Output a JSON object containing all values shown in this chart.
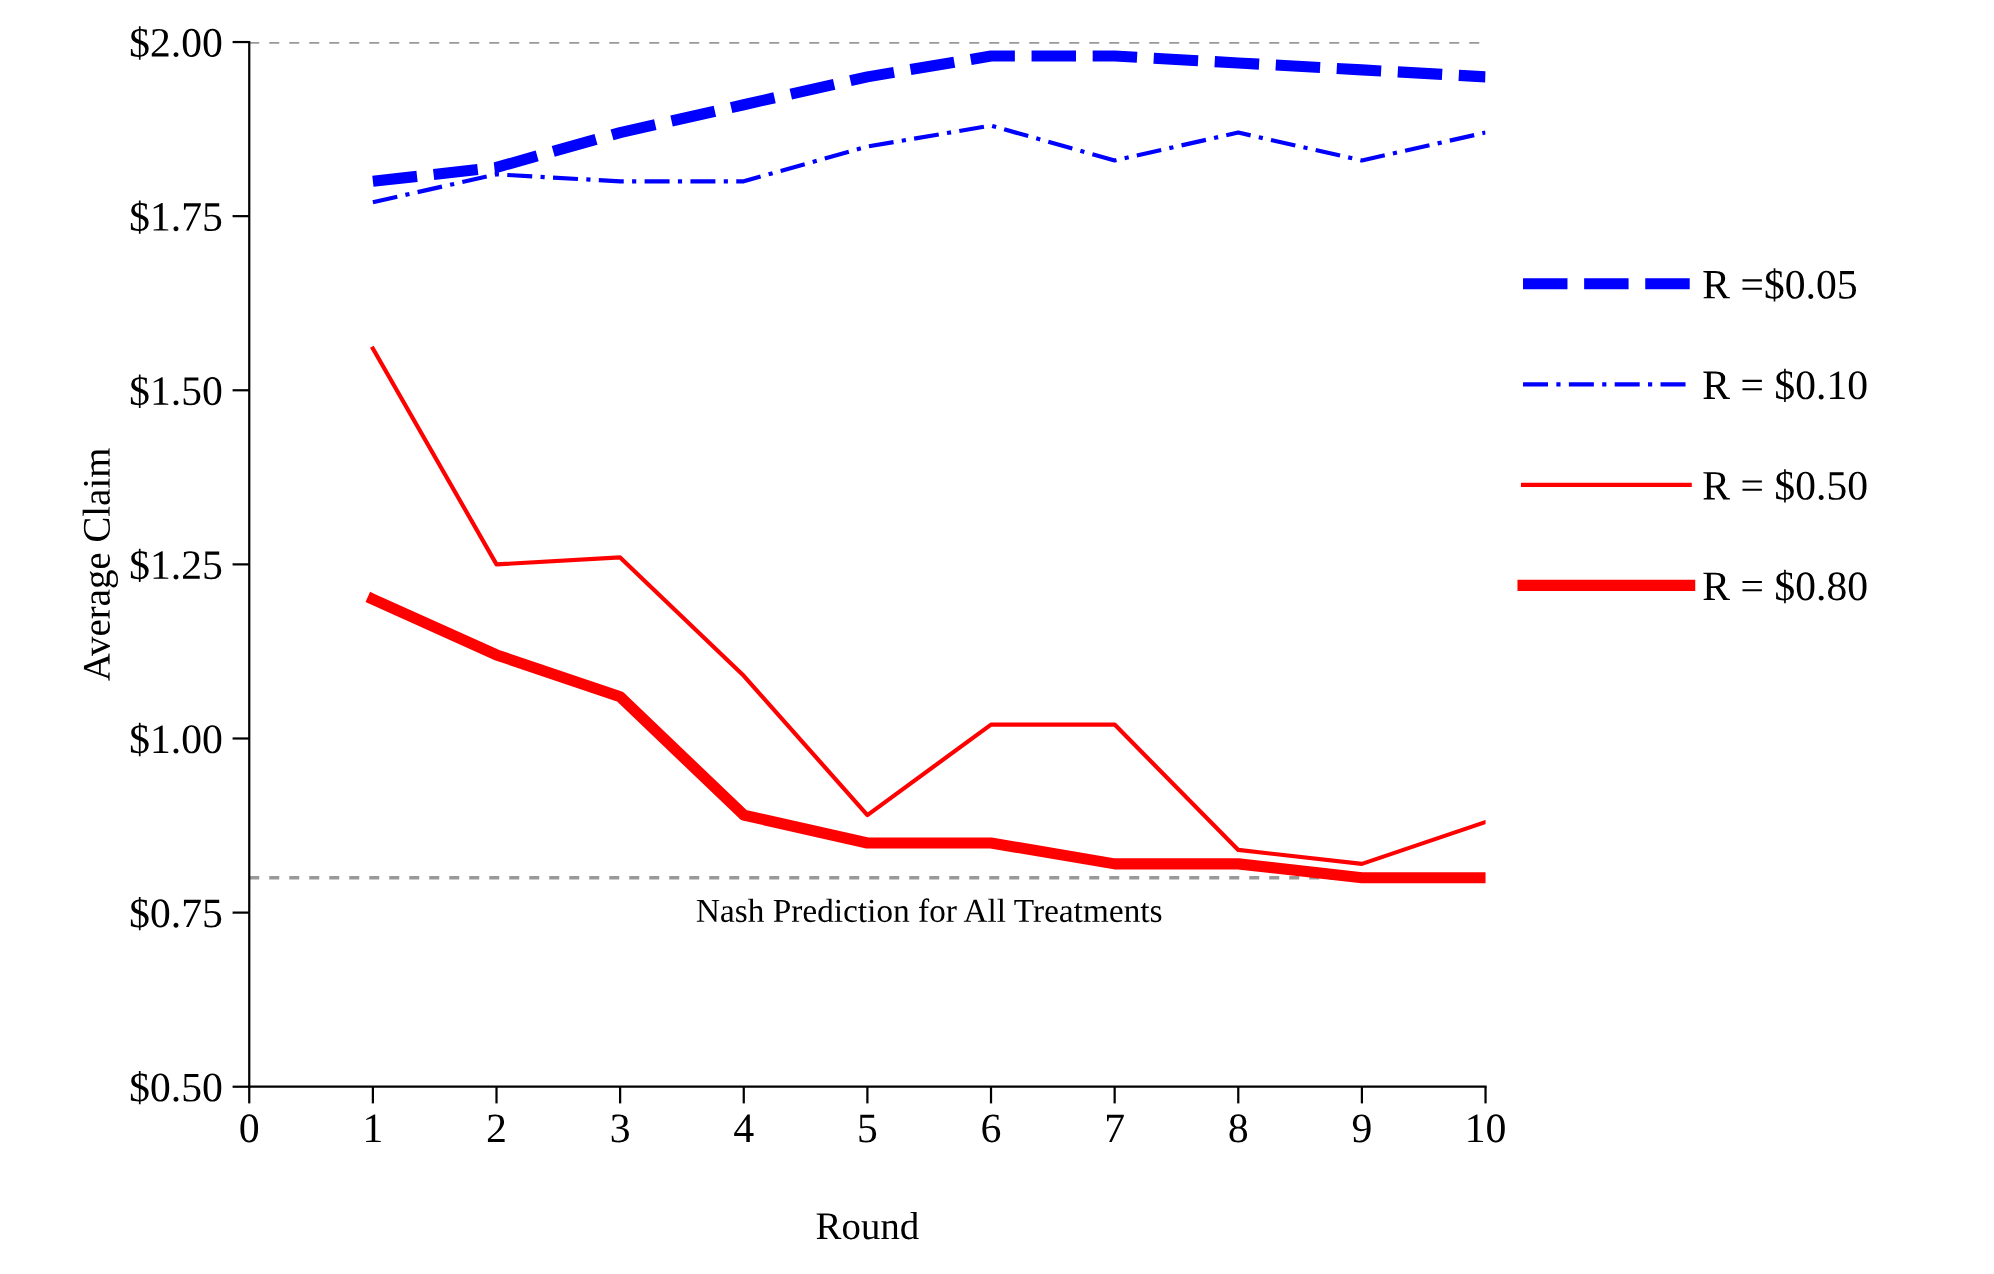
{
  "chart_data": {
    "type": "line",
    "xlabel": "Round",
    "ylabel": "Average Claim",
    "x": [
      1,
      2,
      3,
      4,
      5,
      6,
      7,
      8,
      9,
      10
    ],
    "series": [
      {
        "name": "R =$0.05",
        "color": "#0000ff",
        "line_style": "dashed",
        "values": [
          1.8,
          1.82,
          1.87,
          1.91,
          1.95,
          1.98,
          1.98,
          1.97,
          1.96,
          1.95
        ]
      },
      {
        "name": "R = $0.10",
        "color": "#0000ff",
        "line_style": "dashdot",
        "values": [
          1.77,
          1.81,
          1.8,
          1.8,
          1.85,
          1.88,
          1.83,
          1.87,
          1.83,
          1.87
        ]
      },
      {
        "name": "R = $0.50",
        "color": "#ff0000",
        "line_style": "solid",
        "values": [
          1.56,
          1.25,
          1.26,
          1.09,
          0.89,
          1.02,
          1.02,
          0.84,
          0.82,
          0.88
        ]
      },
      {
        "name": "R = $0.80",
        "color": "#ff0000",
        "line_style": "solid",
        "values": [
          1.2,
          1.12,
          1.06,
          0.89,
          0.85,
          0.85,
          0.82,
          0.82,
          0.8,
          0.8
        ]
      }
    ],
    "xlim": [
      0,
      10
    ],
    "xticks": [
      0,
      1,
      2,
      3,
      4,
      5,
      6,
      7,
      8,
      9,
      10
    ],
    "ylim": [
      0.5,
      2.0
    ],
    "yticks": [
      {
        "value": 0.5,
        "label": "$0.50"
      },
      {
        "value": 0.75,
        "label": "$0.75"
      },
      {
        "value": 1.0,
        "label": "$1.00"
      },
      {
        "value": 1.25,
        "label": "$1.25"
      },
      {
        "value": 1.5,
        "label": "$1.50"
      },
      {
        "value": 1.75,
        "label": "$1.75"
      },
      {
        "value": 2.0,
        "label": "$2.00"
      }
    ],
    "ref_lines": [
      {
        "axis": "y",
        "value": 2.0,
        "color": "#999999",
        "line_style": "dashed"
      },
      {
        "axis": "y",
        "value": 0.8,
        "label": "Nash Prediction for All Treatments",
        "color": "#999999",
        "line_style": "dashed"
      }
    ],
    "grid": false,
    "legend": "right",
    "marker": "none"
  }
}
